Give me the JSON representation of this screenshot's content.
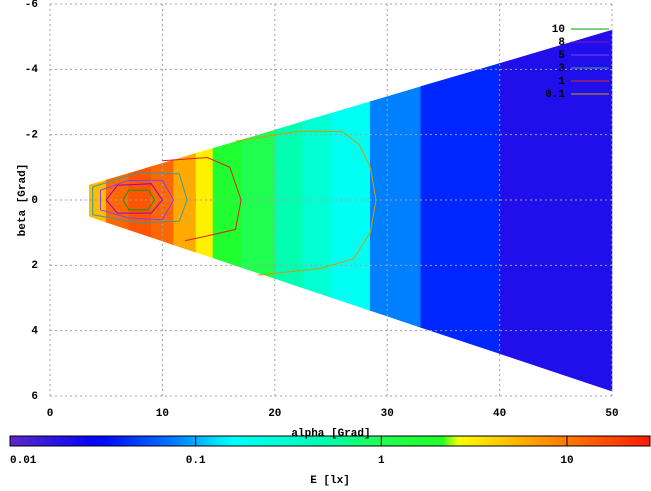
{
  "chart_data": {
    "type": "heatmap",
    "xlabel": "alpha [Grad]",
    "ylabel": "beta [Grad]",
    "cblabel": "E [lx]",
    "xlim": [
      0,
      50
    ],
    "xticks": [
      0,
      10,
      20,
      30,
      40,
      50
    ],
    "ylim": [
      -6,
      6
    ],
    "yticks": [
      -6,
      -4,
      -2,
      0,
      2,
      4,
      6
    ],
    "y_reversed": true,
    "grid": true,
    "x_edges": [
      3.5,
      5,
      7,
      9,
      11,
      13,
      14.5,
      17,
      20,
      22.5,
      25,
      28.5,
      33,
      40,
      50
    ],
    "y_top": [
      -0.46,
      -0.61,
      -0.81,
      -1.02,
      -1.22,
      -1.43,
      -1.58,
      -1.83,
      -2.14,
      -2.4,
      -2.65,
      -3.01,
      -3.47,
      -4.18,
      -5.2
    ],
    "y_bottom": [
      0.5,
      0.68,
      0.91,
      1.14,
      1.37,
      1.6,
      1.77,
      2.06,
      2.4,
      2.69,
      2.98,
      3.38,
      3.9,
      4.7,
      5.85
    ],
    "values": [
      5,
      12,
      15,
      12,
      6,
      3,
      1.8,
      1.0,
      0.5,
      0.3,
      0.18,
      0.08,
      0.04,
      0.02
    ],
    "cblim": [
      0.01,
      28
    ],
    "cb_log": true,
    "cbticks": [
      {
        "value": 0.01,
        "label": "0.01"
      },
      {
        "value": 0.1,
        "label": "0.1"
      },
      1,
      10
    ],
    "colormap": [
      {
        "value": 0.01,
        "color": "#5a28c8"
      },
      {
        "value": 0.03,
        "color": "#0000ff"
      },
      {
        "value": 0.08,
        "color": "#0080ff"
      },
      {
        "value": 0.15,
        "color": "#00ffff"
      },
      {
        "value": 0.5,
        "color": "#00ffb0"
      },
      {
        "value": 1,
        "color": "#20ff50"
      },
      {
        "value": 2.4,
        "color": "#20ff20"
      },
      {
        "value": 2.6,
        "color": "#ffff00"
      },
      {
        "value": 7,
        "color": "#ff9a00"
      },
      {
        "value": 28,
        "color": "#ff1a00"
      }
    ],
    "legend": "top-right",
    "series": [
      {
        "name": "10",
        "color": "#00a000",
        "closed": true,
        "x": [
          7,
          8.8,
          9.3,
          8.7,
          7,
          6.5
        ],
        "y": [
          -0.3,
          -0.3,
          0,
          0.3,
          0.3,
          0
        ]
      },
      {
        "name": "8",
        "color": "#a000c0",
        "closed": true,
        "x": [
          6,
          9,
          10,
          9,
          6,
          5
        ],
        "y": [
          -0.45,
          -0.5,
          0,
          0.4,
          0.4,
          0
        ]
      },
      {
        "name": "5",
        "color": "#8040ff",
        "closed": true,
        "x": [
          4.5,
          7,
          10,
          11,
          10,
          7,
          4.5
        ],
        "y": [
          -0.3,
          -0.6,
          -0.6,
          0,
          0.6,
          0.55,
          0.3
        ]
      },
      {
        "name": "3",
        "color": "#30a0a0",
        "closed": true,
        "x": [
          3.8,
          8,
          11.5,
          12.2,
          11.5,
          8,
          3.8
        ],
        "y": [
          -0.4,
          -0.85,
          -0.8,
          0,
          0.65,
          0.7,
          0.45
        ]
      },
      {
        "name": "1",
        "color": "#e02020",
        "closed": false,
        "x": [
          10,
          14,
          16,
          17,
          16.5,
          14,
          12
        ],
        "y": [
          -1.2,
          -1.3,
          -1,
          0,
          0.9,
          1.1,
          1.25
        ]
      },
      {
        "name": "0.1",
        "color": "#c8a000",
        "closed": false,
        "x": [
          16.5,
          22,
          26,
          27.5,
          28.5,
          29,
          28.5,
          27,
          24,
          18.5
        ],
        "y": [
          -1.8,
          -2.1,
          -2.1,
          -1.7,
          -1,
          0,
          1,
          1.8,
          2.1,
          2.3
        ]
      }
    ]
  }
}
